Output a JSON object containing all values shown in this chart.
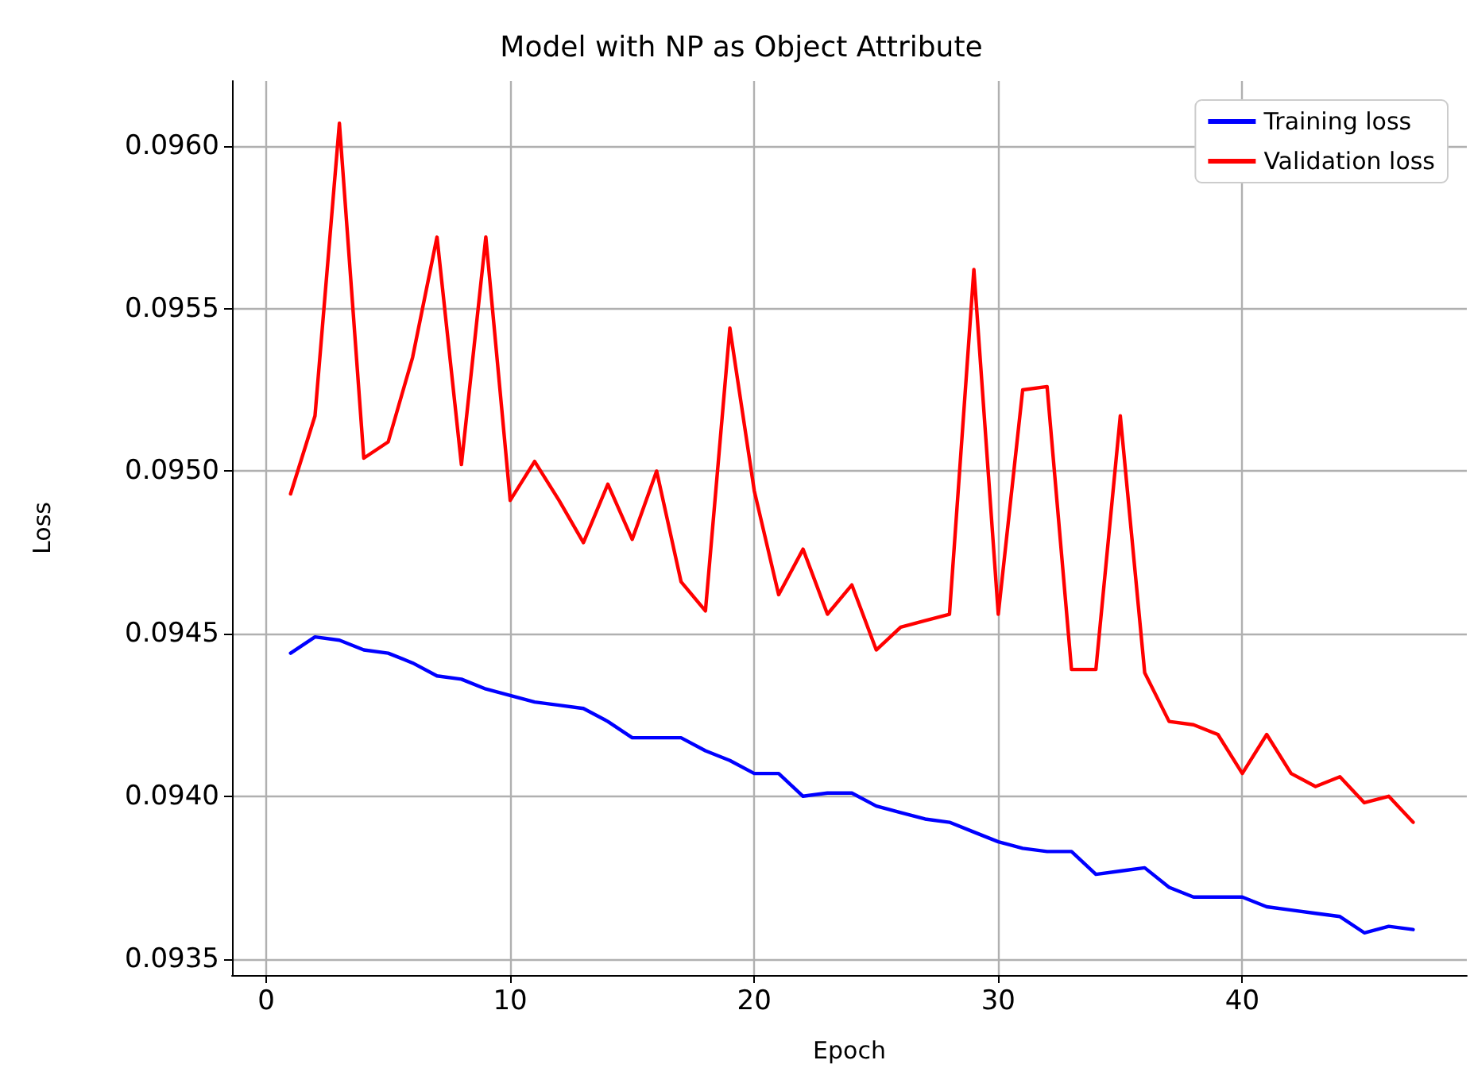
{
  "chart_data": {
    "type": "line",
    "title": "Model with NP as Object Attribute",
    "xlabel": "Epoch",
    "ylabel": "Loss",
    "x": [
      1,
      2,
      3,
      4,
      5,
      6,
      7,
      8,
      9,
      10,
      11,
      12,
      13,
      14,
      15,
      16,
      17,
      18,
      19,
      20,
      21,
      22,
      23,
      24,
      25,
      26,
      27,
      28,
      29,
      30,
      31,
      32,
      33,
      34,
      35,
      36,
      37,
      38,
      39,
      40,
      41,
      42,
      43,
      44,
      45,
      46,
      47
    ],
    "series": [
      {
        "name": "Training loss",
        "color": "#0000ff",
        "values": [
          0.09444,
          0.09449,
          0.09448,
          0.09445,
          0.09444,
          0.09441,
          0.09437,
          0.09436,
          0.09433,
          0.09431,
          0.09429,
          0.09428,
          0.09427,
          0.09423,
          0.09418,
          0.09418,
          0.09418,
          0.09414,
          0.09411,
          0.09407,
          0.09407,
          0.094,
          0.09401,
          0.09401,
          0.09397,
          0.09395,
          0.09393,
          0.09392,
          0.09389,
          0.09386,
          0.09384,
          0.09383,
          0.09383,
          0.09376,
          0.09377,
          0.09378,
          0.09372,
          0.09369,
          0.09369,
          0.09369,
          0.09366,
          0.09365,
          0.09364,
          0.09363,
          0.09358,
          0.0936,
          0.09359
        ]
      },
      {
        "name": "Validation loss",
        "color": "#ff0000",
        "values": [
          0.09493,
          0.09517,
          0.09607,
          0.09504,
          0.09509,
          0.09535,
          0.09572,
          0.09502,
          0.09572,
          0.09491,
          0.09503,
          0.09491,
          0.09478,
          0.09496,
          0.09479,
          0.095,
          0.09466,
          0.09457,
          0.09544,
          0.09494,
          0.09462,
          0.09476,
          0.09456,
          0.09465,
          0.09445,
          0.09452,
          0.09454,
          0.09456,
          0.09562,
          0.09456,
          0.09525,
          0.09526,
          0.09439,
          0.09439,
          0.09517,
          0.09438,
          0.09423,
          0.09422,
          0.09419,
          0.09407,
          0.09419,
          0.09407,
          0.09403,
          0.09406,
          0.09398,
          0.094,
          0.09392
        ]
      }
    ],
    "xlim": [
      -1.4,
      49.2
    ],
    "xticks": [
      0,
      10,
      20,
      30,
      40
    ],
    "ylim": [
      0.09345,
      0.0962
    ],
    "yticks": [
      0.0935,
      {
        "value": 0.094,
        "label": "0.0940"
      },
      0.0945,
      {
        "value": 0.095,
        "label": "0.0950"
      },
      0.0955,
      {
        "value": 0.096,
        "label": "0.0960"
      }
    ],
    "grid": true,
    "legend": "top right",
    "marker": "none",
    "line_style": "solid"
  }
}
